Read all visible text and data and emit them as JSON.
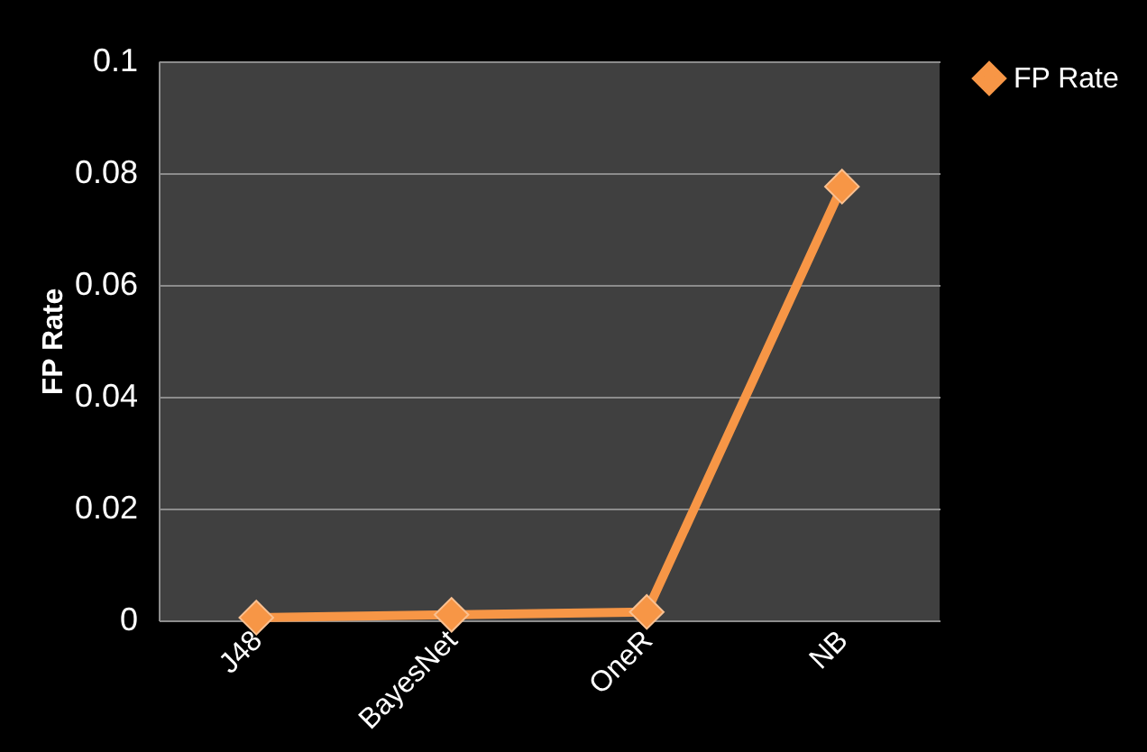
{
  "chart_data": {
    "type": "line",
    "ylabel": "FP  Rate",
    "categories": [
      "J48",
      "BayesNet",
      "OneR",
      "NB"
    ],
    "series": [
      {
        "name": "FP Rate",
        "color": "#f79646",
        "values": [
          0.0005,
          0.001,
          0.0015,
          0.0776
        ]
      }
    ],
    "ylim": [
      0,
      0.1
    ],
    "yticks": [
      0,
      0.02,
      0.04,
      0.06,
      0.08,
      0.1
    ],
    "grid": "y",
    "legend": "right",
    "marker": "diamond",
    "line_style": "solid"
  }
}
